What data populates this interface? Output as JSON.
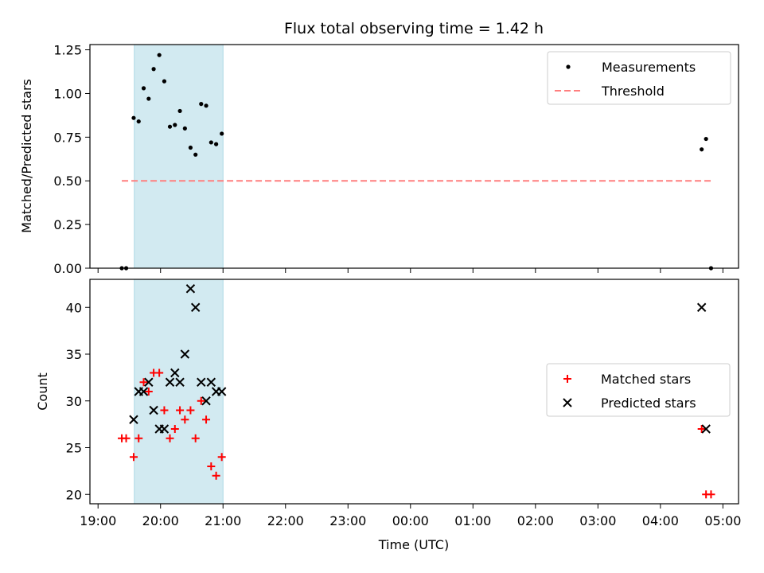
{
  "chart_data": [
    {
      "type": "scatter",
      "title": "Flux total observing time = 1.42 h",
      "xlabel": "",
      "ylabel": "Matched/Predicted stars",
      "xlim": [
        -0.13,
        10.25
      ],
      "ylim": [
        0,
        1.28
      ],
      "yticks": [
        "0.00",
        "0.25",
        "0.50",
        "0.75",
        "1.00",
        "1.25"
      ],
      "ytick_values": [
        0,
        0.25,
        0.5,
        0.75,
        1.0,
        1.25
      ],
      "shaded_span": [
        0.58,
        2.0
      ],
      "legend_position": "upper right",
      "series": [
        {
          "name": "Measurements",
          "kind": "dot",
          "color": "#000000",
          "points": [
            [
              0.38,
              0.0
            ],
            [
              0.45,
              0.0
            ],
            [
              0.57,
              0.86
            ],
            [
              0.65,
              0.84
            ],
            [
              0.73,
              1.03
            ],
            [
              0.81,
              0.97
            ],
            [
              0.89,
              1.14
            ],
            [
              0.98,
              1.22
            ],
            [
              1.06,
              1.07
            ],
            [
              1.15,
              0.81
            ],
            [
              1.23,
              0.82
            ],
            [
              1.31,
              0.9
            ],
            [
              1.39,
              0.8
            ],
            [
              1.48,
              0.69
            ],
            [
              1.56,
              0.65
            ],
            [
              1.65,
              0.94
            ],
            [
              1.73,
              0.93
            ],
            [
              1.81,
              0.72
            ],
            [
              1.89,
              0.71
            ],
            [
              1.98,
              0.77
            ],
            [
              9.66,
              0.68
            ],
            [
              9.73,
              0.74
            ],
            [
              9.81,
              0.0
            ]
          ]
        },
        {
          "name": "Threshold",
          "kind": "dashed-line",
          "color": "#ff7f7f",
          "points": [
            [
              0.38,
              0.5
            ],
            [
              9.81,
              0.5
            ]
          ]
        }
      ]
    },
    {
      "type": "scatter",
      "title": "",
      "xlabel": "Time (UTC)",
      "ylabel": "Count",
      "xlim": [
        -0.13,
        10.25
      ],
      "ylim": [
        19,
        43
      ],
      "yticks": [
        "20",
        "25",
        "30",
        "35",
        "40"
      ],
      "ytick_values": [
        20,
        25,
        30,
        35,
        40
      ],
      "xticks": [
        "19:00",
        "20:00",
        "21:00",
        "22:00",
        "23:00",
        "00:00",
        "01:00",
        "02:00",
        "03:00",
        "04:00",
        "05:00"
      ],
      "xtick_values": [
        0,
        1,
        2,
        3,
        4,
        5,
        6,
        7,
        8,
        9,
        10
      ],
      "shaded_span": [
        0.58,
        2.0
      ],
      "legend_position": "center right",
      "series": [
        {
          "name": "Matched stars",
          "kind": "plus",
          "color": "#ff0000",
          "points": [
            [
              0.38,
              26
            ],
            [
              0.45,
              26
            ],
            [
              0.57,
              24
            ],
            [
              0.65,
              26
            ],
            [
              0.73,
              32
            ],
            [
              0.81,
              31
            ],
            [
              0.89,
              33
            ],
            [
              0.98,
              33
            ],
            [
              1.06,
              29
            ],
            [
              1.15,
              26
            ],
            [
              1.23,
              27
            ],
            [
              1.31,
              29
            ],
            [
              1.39,
              28
            ],
            [
              1.48,
              29
            ],
            [
              1.56,
              26
            ],
            [
              1.65,
              30
            ],
            [
              1.73,
              28
            ],
            [
              1.81,
              23
            ],
            [
              1.89,
              22
            ],
            [
              1.98,
              24
            ],
            [
              9.66,
              27
            ],
            [
              9.73,
              20
            ],
            [
              9.81,
              20
            ]
          ]
        },
        {
          "name": "Predicted stars",
          "kind": "cross",
          "color": "#000000",
          "points": [
            [
              0.57,
              28
            ],
            [
              0.65,
              31
            ],
            [
              0.73,
              31
            ],
            [
              0.81,
              32
            ],
            [
              0.89,
              29
            ],
            [
              0.98,
              27
            ],
            [
              1.06,
              27
            ],
            [
              1.15,
              32
            ],
            [
              1.23,
              33
            ],
            [
              1.31,
              32
            ],
            [
              1.39,
              35
            ],
            [
              1.48,
              42
            ],
            [
              1.56,
              40
            ],
            [
              1.65,
              32
            ],
            [
              1.73,
              30
            ],
            [
              1.81,
              32
            ],
            [
              1.89,
              31
            ],
            [
              1.98,
              31
            ],
            [
              9.66,
              40
            ],
            [
              9.73,
              27
            ]
          ]
        }
      ]
    }
  ]
}
